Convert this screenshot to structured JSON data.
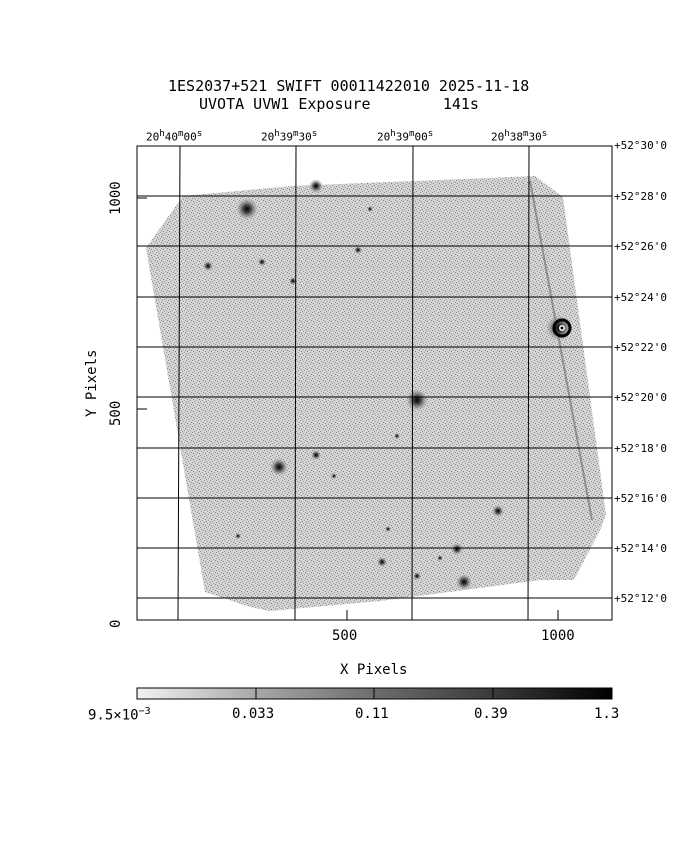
{
  "title": {
    "line1": "1ES2037+521 SWIFT 00011422010 2025-11-18",
    "line2": "UVOTA UVW1 Exposure        141s"
  },
  "axes": {
    "xlabel": "X Pixels",
    "ylabel": "Y Pixels",
    "x_ticks": [
      "500",
      "1000"
    ],
    "y_ticks": [
      "0",
      "500",
      "1000"
    ]
  },
  "ra_labels": [
    {
      "h": "20",
      "m": "40",
      "s": "00"
    },
    {
      "h": "20",
      "m": "39",
      "s": "30"
    },
    {
      "h": "20",
      "m": "39",
      "s": "00"
    },
    {
      "h": "20",
      "m": "38",
      "s": "30"
    }
  ],
  "dec_labels": [
    "+52°30'0",
    "+52°28'0",
    "+52°26'0",
    "+52°24'0",
    "+52°22'0",
    "+52°20'0",
    "+52°18'0",
    "+52°16'0",
    "+52°14'0",
    "+52°12'0"
  ],
  "colorbar": {
    "labels": [
      "0.033",
      "0.11",
      "0.39",
      "1.3"
    ],
    "min_label": {
      "mantissa": "9.5×10",
      "exponent": "−3"
    }
  },
  "colors": {
    "background": "#ffffff",
    "field": "#bdbdbd",
    "ink": "#000000"
  }
}
